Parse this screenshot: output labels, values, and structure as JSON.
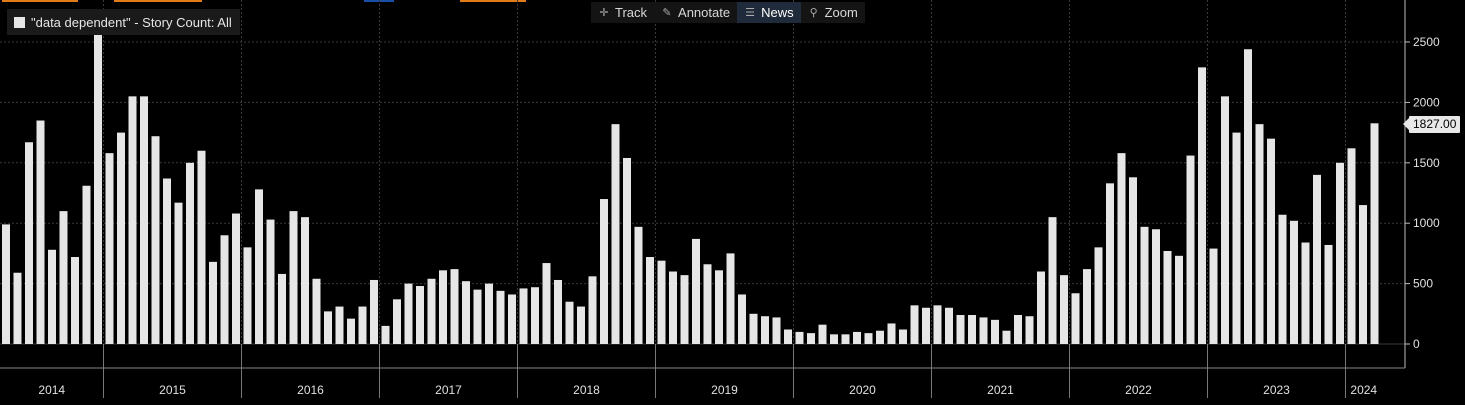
{
  "toolbar": {
    "track": "Track",
    "annotate": "Annotate",
    "news": "News",
    "zoom": "Zoom"
  },
  "colors": {
    "bar": "#e6e6e6",
    "grid": "#3a3a3a",
    "background": "#000000",
    "tab_orange": "#e07b1a",
    "tab_blue": "#1a4fa8"
  },
  "legend": {
    "label": "\"data dependent\" - Story Count: All"
  },
  "last_value_label": "1827.00",
  "chart_data": {
    "type": "bar",
    "title": "",
    "series": [
      {
        "name": "\"data dependent\" - Story Count: All"
      }
    ],
    "ylim": [
      0,
      2800
    ],
    "yticks": [
      0,
      500,
      1000,
      1500,
      2000,
      2500
    ],
    "ytick_labels": [
      "0",
      "500",
      "1000",
      "1500",
      "2000",
      "2500"
    ],
    "x_start": "2014-04",
    "years": [
      "2014",
      "2015",
      "2016",
      "2017",
      "2018",
      "2019",
      "2020",
      "2021",
      "2022",
      "2023",
      "2024"
    ],
    "grid": true,
    "y_axis_position": "right",
    "values": [
      990,
      590,
      1670,
      1850,
      780,
      1100,
      720,
      1310,
      2590,
      1580,
      1750,
      2050,
      2050,
      1720,
      1370,
      1170,
      1500,
      1600,
      680,
      900,
      1080,
      800,
      1280,
      1030,
      580,
      1100,
      1050,
      540,
      270,
      310,
      210,
      310,
      530,
      150,
      370,
      500,
      480,
      540,
      610,
      620,
      520,
      450,
      500,
      440,
      410,
      460,
      470,
      670,
      530,
      350,
      310,
      560,
      1200,
      1820,
      1540,
      970,
      720,
      690,
      600,
      570,
      870,
      660,
      610,
      750,
      410,
      250,
      230,
      220,
      120,
      100,
      90,
      160,
      80,
      80,
      100,
      90,
      110,
      170,
      120,
      320,
      300,
      320,
      300,
      240,
      240,
      220,
      200,
      110,
      240,
      230,
      600,
      1050,
      570,
      420,
      620,
      800,
      1330,
      1580,
      1380,
      970,
      950,
      770,
      730,
      1560,
      2290,
      790,
      2050,
      1750,
      2440,
      1820,
      1700,
      1070,
      1020,
      840,
      1400,
      820,
      1500,
      1620,
      1150,
      1827
    ]
  }
}
